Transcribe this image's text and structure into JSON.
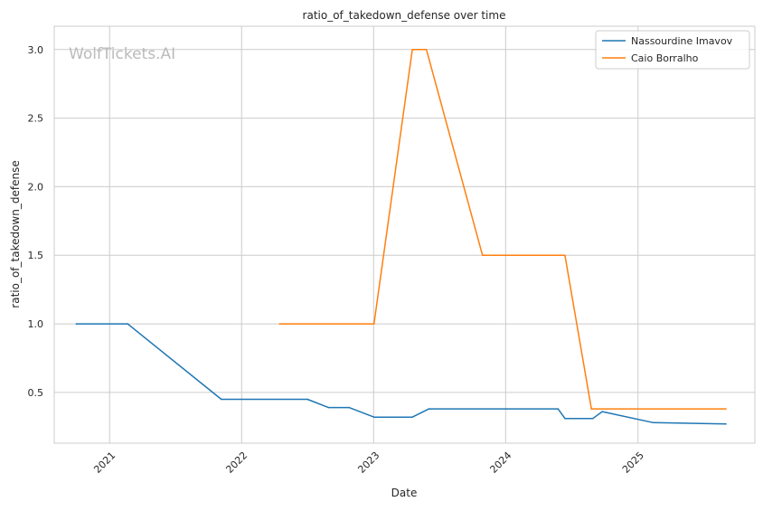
{
  "chart_data": {
    "type": "line",
    "title": "ratio_of_takedown_defense over time",
    "xlabel": "Date",
    "ylabel": "ratio_of_takedown_defense",
    "watermark": "WolfTickets.AI",
    "x_ticks": [
      "2021",
      "2022",
      "2023",
      "2024",
      "2025"
    ],
    "y_ticks": [
      "0.5",
      "1.0",
      "1.5",
      "2.0",
      "2.5",
      "3.0"
    ],
    "xlim": [
      "2020-08-01",
      "2025-11-20"
    ],
    "ylim": [
      0.13,
      3.17
    ],
    "grid": true,
    "legend_position": "top-right",
    "series": [
      {
        "name": "Nassourdine Imavov",
        "color": "#1f77b4",
        "points": [
          [
            "2020-10-01",
            1.0
          ],
          [
            "2021-02-20",
            1.0
          ],
          [
            "2021-11-06",
            0.45
          ],
          [
            "2022-07-02",
            0.45
          ],
          [
            "2022-08-29",
            0.39
          ],
          [
            "2022-10-25",
            0.39
          ],
          [
            "2023-01-02",
            0.32
          ],
          [
            "2023-04-18",
            0.32
          ],
          [
            "2023-06-03",
            0.38
          ],
          [
            "2024-05-25",
            0.38
          ],
          [
            "2024-06-13",
            0.31
          ],
          [
            "2024-08-29",
            0.31
          ],
          [
            "2024-09-24",
            0.36
          ],
          [
            "2025-02-12",
            0.28
          ],
          [
            "2025-09-01",
            0.27
          ]
        ]
      },
      {
        "name": "Caio Borralho",
        "color": "#ff7f0e",
        "points": [
          [
            "2022-04-16",
            1.0
          ],
          [
            "2023-01-02",
            1.0
          ],
          [
            "2023-04-18",
            3.0
          ],
          [
            "2023-05-27",
            3.0
          ],
          [
            "2023-10-29",
            1.5
          ],
          [
            "2024-06-13",
            1.5
          ],
          [
            "2024-08-25",
            0.38
          ],
          [
            "2025-09-01",
            0.38
          ]
        ]
      }
    ]
  }
}
